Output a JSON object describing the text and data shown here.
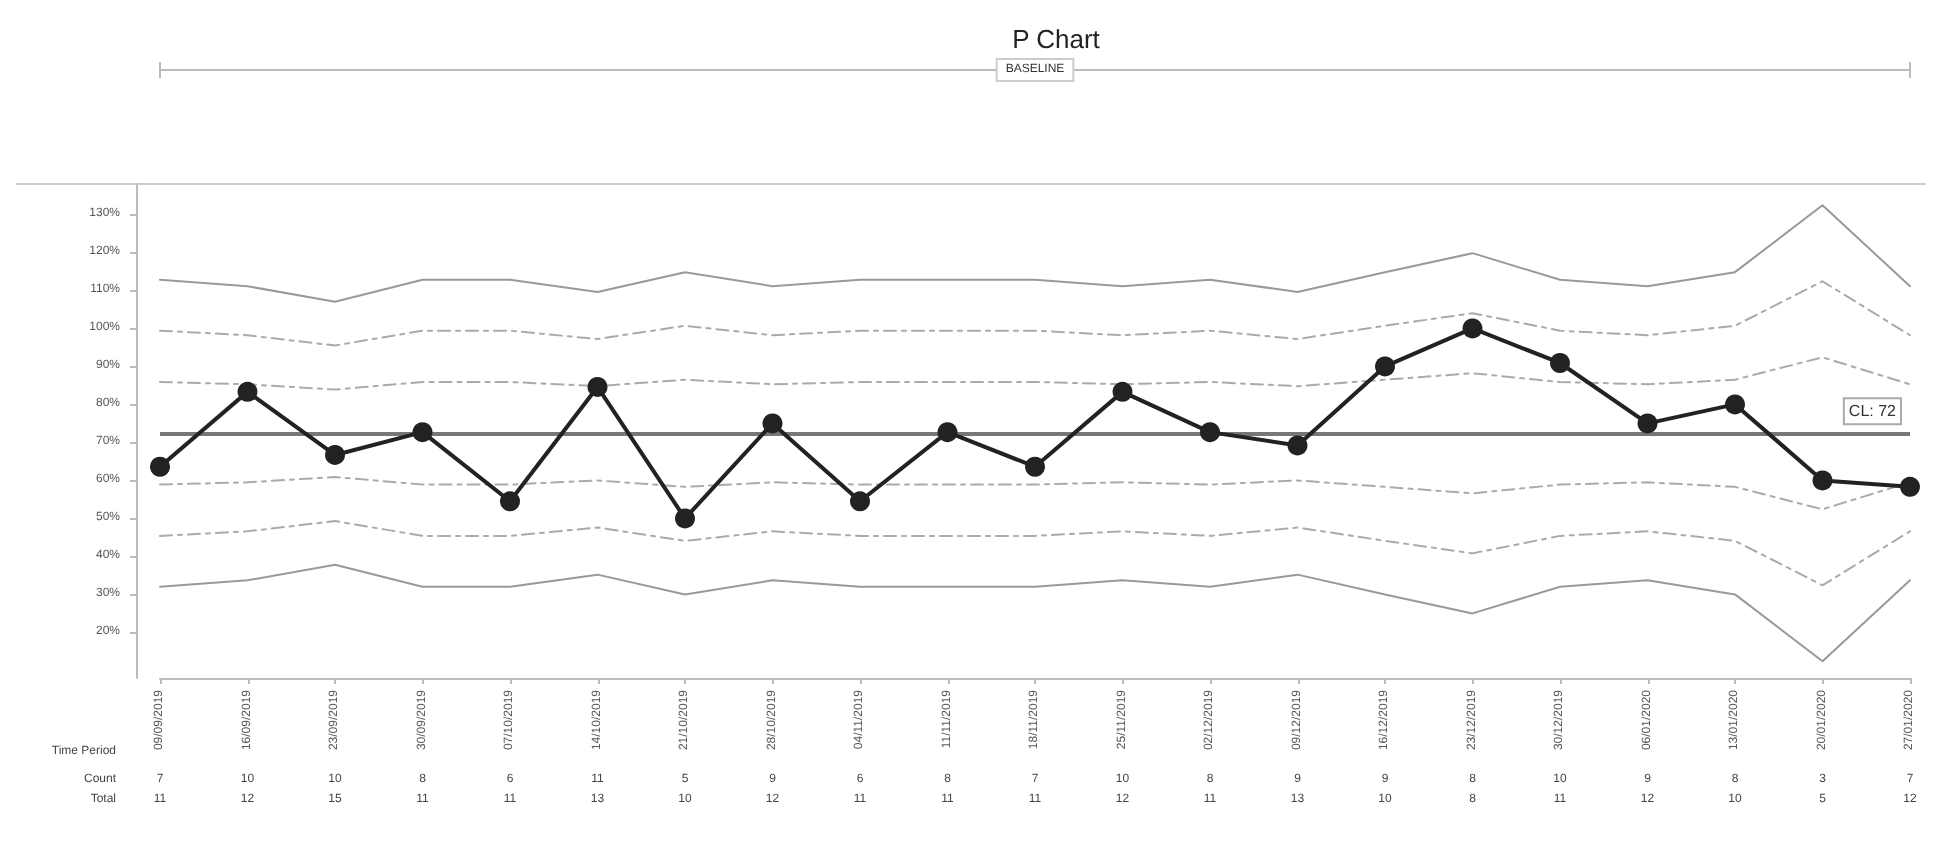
{
  "chart_data": {
    "type": "line",
    "title": "P Chart",
    "categories": [
      "09/09/2019",
      "16/09/2019",
      "23/09/2019",
      "30/09/2019",
      "07/10/2019",
      "14/10/2019",
      "21/10/2019",
      "28/10/2019",
      "04/11/2019",
      "11/11/2019",
      "18/11/2019",
      "25/11/2019",
      "02/12/2019",
      "09/12/2019",
      "16/12/2019",
      "23/12/2019",
      "30/12/2019",
      "06/01/2020",
      "13/01/2020",
      "20/01/2020",
      "27/01/2020"
    ],
    "series": [
      {
        "color": "#999999",
        "line_style": "solid",
        "marker": "none",
        "values": [
          112.8,
          111.1,
          107.0,
          112.8,
          112.8,
          109.6,
          114.8,
          111.1,
          112.8,
          112.8,
          112.8,
          111.1,
          112.8,
          109.6,
          114.8,
          119.8,
          112.8,
          111.1,
          114.8,
          132.4,
          111.1
        ]
      },
      {
        "color": "#aaaaaa",
        "line_style": "dashed",
        "marker": "none",
        "values": [
          99.4,
          98.2,
          95.5,
          99.4,
          99.4,
          97.2,
          100.7,
          98.2,
          99.4,
          99.4,
          99.4,
          98.2,
          99.4,
          97.2,
          100.7,
          104.0,
          99.4,
          98.2,
          100.7,
          112.4,
          98.2
        ]
      },
      {
        "color": "#aaaaaa",
        "line_style": "dashed",
        "marker": "none",
        "values": [
          85.9,
          85.3,
          83.9,
          85.9,
          85.9,
          84.8,
          86.5,
          85.3,
          85.9,
          85.9,
          85.9,
          85.3,
          85.9,
          84.8,
          86.5,
          88.2,
          85.9,
          85.3,
          86.5,
          92.4,
          85.3
        ]
      },
      {
        "color": "#aaaaaa",
        "line_style": "dashed",
        "marker": "none",
        "values": [
          58.9,
          59.5,
          60.9,
          58.9,
          58.9,
          60.0,
          58.3,
          59.5,
          58.9,
          58.9,
          58.9,
          59.5,
          58.9,
          60.0,
          58.3,
          56.6,
          58.9,
          59.5,
          58.3,
          52.4,
          59.5
        ]
      },
      {
        "color": "#aaaaaa",
        "line_style": "dashed",
        "marker": "none",
        "values": [
          45.4,
          46.6,
          49.3,
          45.4,
          45.4,
          47.6,
          44.1,
          46.6,
          45.4,
          45.4,
          45.4,
          46.6,
          45.4,
          47.6,
          44.1,
          40.8,
          45.4,
          46.6,
          44.1,
          32.4,
          46.6
        ]
      },
      {
        "color": "#999999",
        "line_style": "solid",
        "marker": "none",
        "values": [
          32.0,
          33.7,
          37.8,
          32.0,
          32.0,
          35.2,
          30.0,
          33.7,
          32.0,
          32.0,
          32.0,
          33.7,
          32.0,
          35.2,
          30.0,
          25.0,
          32.0,
          33.7,
          30.0,
          12.4,
          33.7
        ]
      },
      {
        "color": "#222222",
        "line_style": "solid",
        "marker": "circle",
        "values": [
          63.6,
          83.3,
          66.7,
          72.7,
          54.5,
          84.6,
          50.0,
          75.0,
          54.5,
          72.7,
          63.6,
          83.3,
          72.7,
          69.2,
          90.0,
          100.0,
          90.9,
          75.0,
          80.0,
          60.0,
          58.3
        ]
      }
    ],
    "ylim": [
      8,
      138
    ],
    "yticks": [
      {
        "value": 20,
        "label": "20%"
      },
      {
        "value": 30,
        "label": "30%"
      },
      {
        "value": 40,
        "label": "40%"
      },
      {
        "value": 50,
        "label": "50%"
      },
      {
        "value": 60,
        "label": "60%"
      },
      {
        "value": 70,
        "label": "70%"
      },
      {
        "value": 80,
        "label": "80%"
      },
      {
        "value": 90,
        "label": "90%"
      },
      {
        "value": 100,
        "label": "100%"
      },
      {
        "value": 110,
        "label": "110%"
      },
      {
        "value": 120,
        "label": "120%"
      },
      {
        "value": 130,
        "label": "130%"
      }
    ],
    "ref_lines": [
      {
        "axis": "y",
        "value": 72.4,
        "label": "CL: 72",
        "color": "#777777"
      }
    ],
    "annotations": [
      "Time Period",
      "Count",
      "Total",
      "BASELINE",
      "7",
      "10",
      "10",
      "8",
      "6",
      "11",
      "5",
      "9",
      "6",
      "8",
      "7",
      "10",
      "8",
      "9",
      "9",
      "8",
      "10",
      "9",
      "8",
      "3",
      "7",
      "11",
      "12",
      "15",
      "11",
      "11",
      "13",
      "10",
      "12",
      "11",
      "11",
      "11",
      "12",
      "11",
      "13",
      "10",
      "8",
      "11",
      "12",
      "10",
      "5",
      "12"
    ]
  }
}
